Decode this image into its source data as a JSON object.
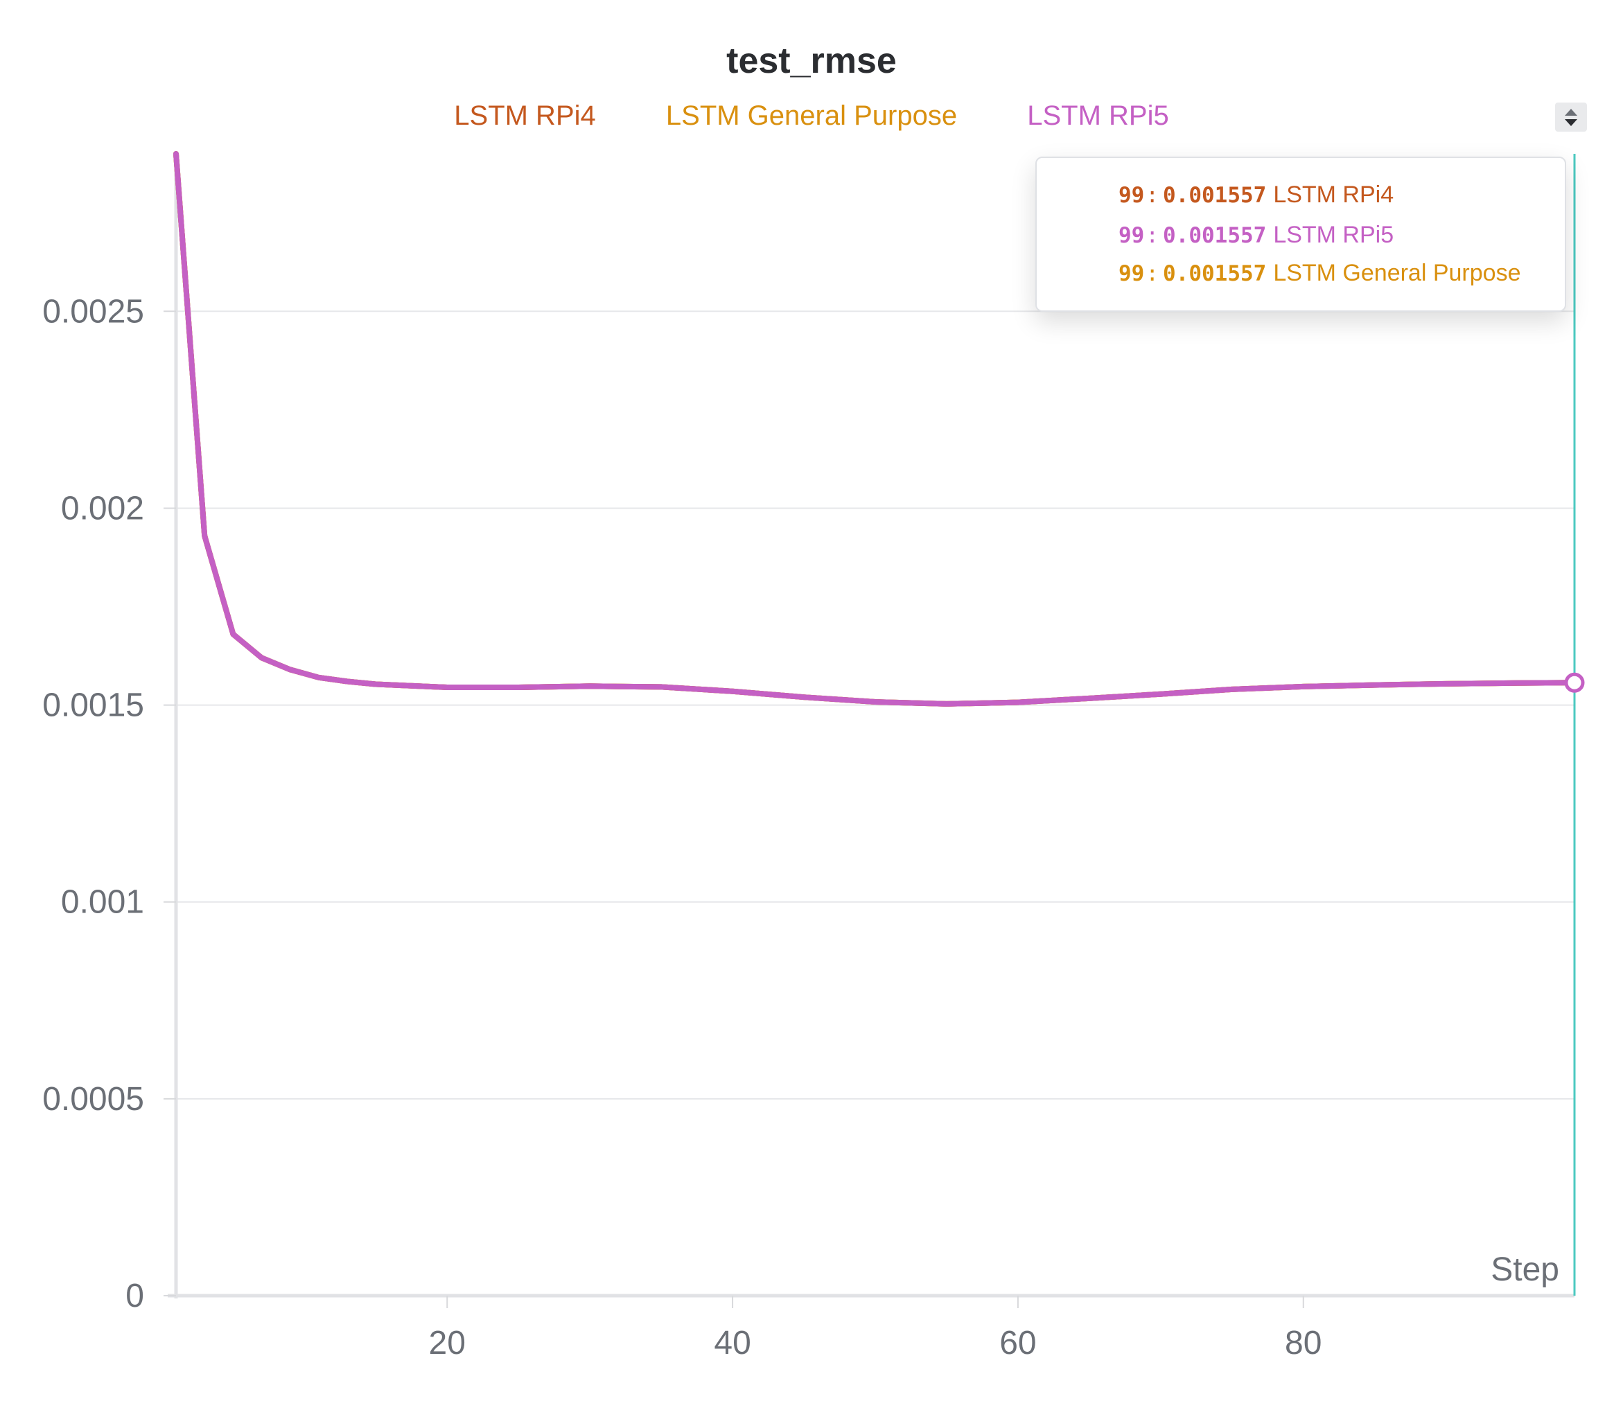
{
  "chart_data": {
    "type": "line",
    "title": "test_rmse",
    "xlabel": "Step",
    "ylabel": "",
    "xlim": [
      1,
      99
    ],
    "ylim": [
      0,
      0.0029
    ],
    "x_ticks": [
      20,
      40,
      60,
      80
    ],
    "y_ticks": [
      0,
      0.0005,
      0.001,
      0.0015,
      0.002,
      0.0025
    ],
    "y_tick_labels": [
      "0",
      "0.0005",
      "0.001",
      "0.0015",
      "0.002",
      "0.0025"
    ],
    "x_tick_labels": [
      "20",
      "40",
      "60",
      "80"
    ],
    "grid": true,
    "legend_position": "top-center",
    "x": [
      1,
      3,
      5,
      7,
      9,
      11,
      13,
      15,
      20,
      25,
      30,
      35,
      40,
      45,
      50,
      55,
      60,
      65,
      70,
      75,
      80,
      85,
      90,
      95,
      99
    ],
    "series": [
      {
        "name": "LSTM RPi4",
        "color": "#c4581e",
        "values": [
          0.0029,
          0.00193,
          0.00168,
          0.00162,
          0.00159,
          0.00157,
          0.00156,
          0.001553,
          0.001545,
          0.001545,
          0.001548,
          0.001546,
          0.001535,
          0.00152,
          0.001508,
          0.001503,
          0.001507,
          0.001517,
          0.001528,
          0.00154,
          0.001547,
          0.001551,
          0.001554,
          0.001556,
          0.001557
        ]
      },
      {
        "name": "LSTM General Purpose",
        "color": "#d9900f",
        "values": [
          0.0029,
          0.00193,
          0.00168,
          0.00162,
          0.00159,
          0.00157,
          0.00156,
          0.001553,
          0.001545,
          0.001545,
          0.001548,
          0.001546,
          0.001535,
          0.00152,
          0.001508,
          0.001503,
          0.001507,
          0.001517,
          0.001528,
          0.00154,
          0.001547,
          0.001551,
          0.001554,
          0.001556,
          0.001557
        ]
      },
      {
        "name": "LSTM RPi5",
        "color": "#c460c4",
        "values": [
          0.0029,
          0.00193,
          0.00168,
          0.00162,
          0.00159,
          0.00157,
          0.00156,
          0.001553,
          0.001545,
          0.001545,
          0.001548,
          0.001546,
          0.001535,
          0.00152,
          0.001508,
          0.001503,
          0.001507,
          0.001517,
          0.001528,
          0.00154,
          0.001547,
          0.001551,
          0.001554,
          0.001556,
          0.001557
        ]
      }
    ],
    "hover": {
      "step": 99,
      "cursor_color": "#4cc9c0",
      "rows": [
        {
          "step": "99",
          "value": "0.001557",
          "name": "LSTM RPi4",
          "color": "#c4581e"
        },
        {
          "step": "99",
          "value": "0.001557",
          "name": "LSTM RPi5",
          "color": "#c460c4"
        },
        {
          "step": "99",
          "value": "0.001557",
          "name": "LSTM General Purpose",
          "color": "#d9900f"
        }
      ]
    }
  }
}
